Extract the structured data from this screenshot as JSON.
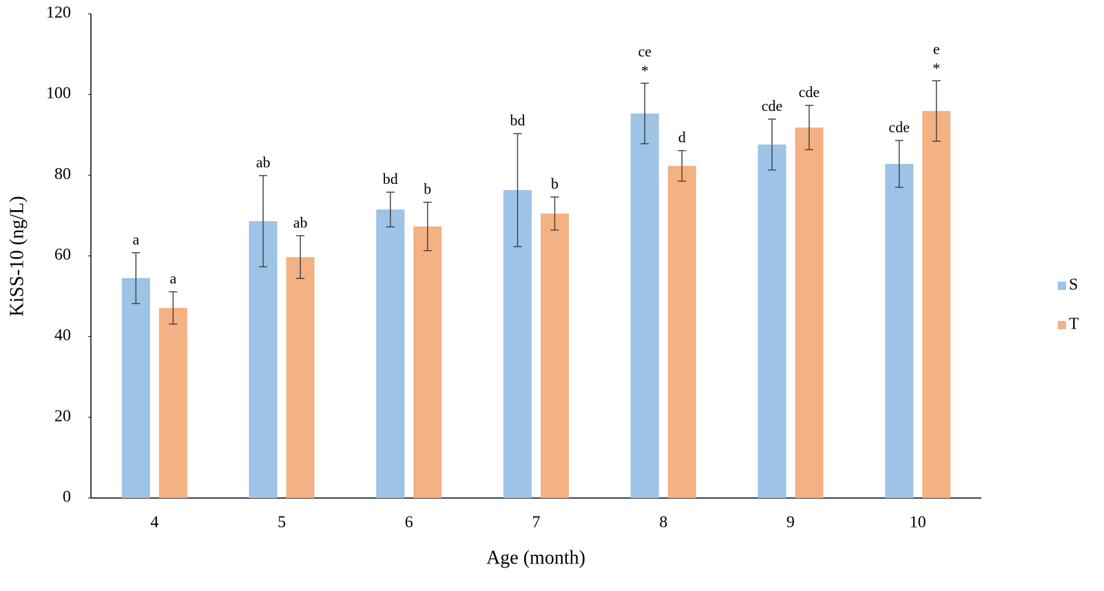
{
  "chart_data": {
    "type": "bar",
    "x_label": "Age (month)",
    "y_label": "KiSS-10 (ng/L)",
    "categories": [
      "4",
      "5",
      "6",
      "7",
      "8",
      "9",
      "10"
    ],
    "series": [
      {
        "name": "S",
        "color": "#9dc3e6",
        "values": [
          54.5,
          68.6,
          71.5,
          76.3,
          95.3,
          87.6,
          82.8
        ],
        "errors": [
          6.3,
          11.3,
          4.3,
          14.0,
          7.5,
          6.3,
          5.8
        ],
        "annotations": [
          "a",
          "ab",
          "bd",
          "bd",
          "ce",
          "cde",
          "cde"
        ],
        "stars": [
          null,
          null,
          null,
          null,
          "*",
          null,
          null
        ]
      },
      {
        "name": "T",
        "color": "#f4b183",
        "values": [
          47.1,
          59.7,
          67.3,
          70.5,
          82.3,
          91.8,
          95.9
        ],
        "errors": [
          4.0,
          5.3,
          6.0,
          4.1,
          3.8,
          5.5,
          7.5
        ],
        "annotations": [
          "a",
          "ab",
          "b",
          "b",
          "d",
          "cde",
          "e"
        ],
        "stars": [
          null,
          null,
          null,
          null,
          null,
          null,
          "*"
        ]
      }
    ],
    "ylim": [
      0,
      120
    ],
    "yticks": [
      0,
      20,
      40,
      60,
      80,
      100,
      120
    ],
    "grid": false,
    "legend": "right"
  }
}
